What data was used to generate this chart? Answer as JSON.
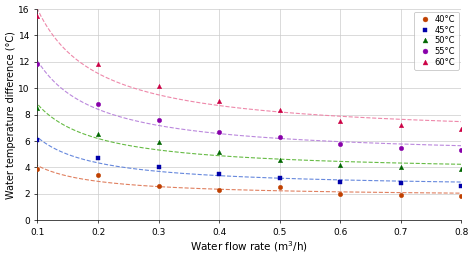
{
  "x": [
    0.1,
    0.2,
    0.3,
    0.4,
    0.5,
    0.6,
    0.7,
    0.8
  ],
  "series": [
    {
      "label": "40°C",
      "color": "#C04000",
      "line_color": "#E08060",
      "marker": "o",
      "values": [
        3.9,
        3.45,
        2.6,
        2.3,
        2.55,
        2.0,
        1.9,
        1.8
      ]
    },
    {
      "label": "45°C",
      "color": "#0000AA",
      "line_color": "#6688DD",
      "marker": "s",
      "values": [
        6.05,
        4.7,
        4.0,
        3.5,
        3.2,
        2.9,
        2.85,
        2.6
      ]
    },
    {
      "label": "50°C",
      "color": "#006600",
      "line_color": "#66BB44",
      "marker": "^",
      "values": [
        8.5,
        6.5,
        5.9,
        5.2,
        4.6,
        4.2,
        4.05,
        3.9
      ]
    },
    {
      "label": "55°C",
      "color": "#8800AA",
      "line_color": "#BB88DD",
      "marker": "o",
      "values": [
        11.8,
        8.8,
        7.6,
        6.7,
        6.3,
        5.8,
        5.5,
        5.3
      ]
    },
    {
      "label": "60°C",
      "color": "#CC0044",
      "line_color": "#EE88AA",
      "marker": "^",
      "values": [
        15.5,
        11.8,
        10.2,
        9.05,
        8.35,
        7.5,
        7.2,
        6.9
      ]
    }
  ],
  "xlabel": "Water flow rate (m$^3$/h)",
  "ylabel": "Water temperature difference (°C)",
  "xlim": [
    0.1,
    0.8
  ],
  "ylim": [
    0,
    16
  ],
  "yticks": [
    0,
    2,
    4,
    6,
    8,
    10,
    12,
    14,
    16
  ],
  "xticks": [
    0.1,
    0.2,
    0.3,
    0.4,
    0.5,
    0.6,
    0.7,
    0.8
  ],
  "grid_color": "#cccccc",
  "bg_color": "#ffffff"
}
